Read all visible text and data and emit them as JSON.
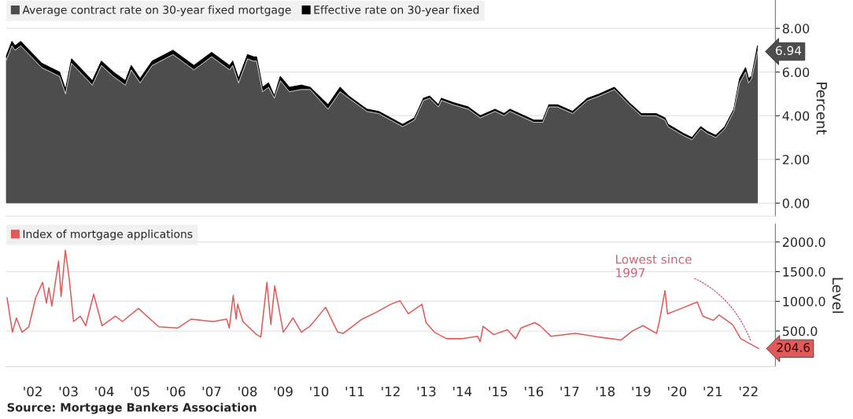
{
  "chart_data": [
    {
      "type": "area",
      "x": [
        "2001-10",
        "2001-12",
        "2002-01",
        "2002-03",
        "2002-10",
        "2003-04",
        "2003-06",
        "2003-08",
        "2004-03",
        "2004-06",
        "2004-10",
        "2005-02",
        "2005-04",
        "2005-07",
        "2005-11",
        "2006-06",
        "2007-01",
        "2007-07",
        "2008-01",
        "2008-02",
        "2008-04",
        "2008-07",
        "2008-09",
        "2008-10",
        "2008-12",
        "2009-02",
        "2009-04",
        "2009-06",
        "2009-09",
        "2010-01",
        "2010-04",
        "2010-10",
        "2011-02",
        "2011-05",
        "2011-11",
        "2012-03",
        "2012-11",
        "2013-03",
        "2013-06",
        "2013-08",
        "2013-11",
        "2013-12",
        "2014-04",
        "2014-09",
        "2015-01",
        "2015-06",
        "2015-09",
        "2015-11",
        "2016-07",
        "2016-10",
        "2016-12",
        "2017-03",
        "2017-08",
        "2018-01",
        "2018-05",
        "2018-10",
        "2019-03",
        "2019-07",
        "2019-12",
        "2020-03",
        "2020-04",
        "2020-09",
        "2020-12",
        "2021-03",
        "2021-05",
        "2021-08",
        "2021-11",
        "2022-02",
        "2022-04",
        "2022-06",
        "2022-07",
        "2022-08",
        "2022-10"
      ],
      "series": [
        {
          "name": "Average contract rate on 30-year fixed mortgage",
          "color": "#4d4d4d",
          "values": [
            6.5,
            7.2,
            7.0,
            7.2,
            6.2,
            5.8,
            5.0,
            6.4,
            5.4,
            6.3,
            5.8,
            5.4,
            6.1,
            5.5,
            6.3,
            6.8,
            6.1,
            6.7,
            6.1,
            6.3,
            5.5,
            6.6,
            6.5,
            6.5,
            5.1,
            5.3,
            4.8,
            5.6,
            5.1,
            5.2,
            5.2,
            4.3,
            5.1,
            4.8,
            4.2,
            4.1,
            3.5,
            3.8,
            4.7,
            4.8,
            4.4,
            4.7,
            4.5,
            4.3,
            3.9,
            4.2,
            4.0,
            4.2,
            3.7,
            3.7,
            4.4,
            4.4,
            4.1,
            4.7,
            4.9,
            5.2,
            4.5,
            4.0,
            4.0,
            3.8,
            3.5,
            3.1,
            2.9,
            3.4,
            3.2,
            3.0,
            3.4,
            4.2,
            5.5,
            6.0,
            5.5,
            5.7,
            6.94
          ],
          "value_labels": [
            null,
            null,
            null,
            null,
            null,
            null,
            null,
            null,
            null,
            null,
            null,
            null,
            null,
            null,
            null,
            null,
            null,
            null,
            null,
            null,
            null,
            null,
            null,
            null,
            null,
            null,
            null,
            null,
            null,
            null,
            null,
            null,
            null,
            null,
            null,
            null,
            null,
            null,
            null,
            null,
            null,
            null,
            null,
            null,
            null,
            null,
            null,
            null,
            null,
            null,
            null,
            null,
            null,
            null,
            null,
            null,
            null,
            null,
            null,
            null,
            null,
            null,
            null,
            null,
            null,
            null,
            null,
            null,
            null,
            null,
            null,
            null,
            "6.94"
          ]
        },
        {
          "name": "Effective rate on 30-year fixed",
          "color": "#000000",
          "values": [
            6.7,
            7.4,
            7.2,
            7.4,
            6.4,
            6.0,
            5.2,
            6.6,
            5.6,
            6.5,
            6.0,
            5.6,
            6.3,
            5.7,
            6.5,
            7.0,
            6.3,
            6.9,
            6.3,
            6.5,
            5.7,
            6.8,
            6.7,
            6.7,
            5.3,
            5.5,
            4.9,
            5.8,
            5.3,
            5.4,
            5.3,
            4.5,
            5.3,
            4.9,
            4.3,
            4.2,
            3.6,
            3.9,
            4.8,
            4.9,
            4.5,
            4.8,
            4.6,
            4.4,
            4.0,
            4.3,
            4.1,
            4.3,
            3.8,
            3.8,
            4.5,
            4.5,
            4.2,
            4.8,
            5.0,
            5.3,
            4.6,
            4.1,
            4.1,
            3.9,
            3.6,
            3.2,
            3.0,
            3.5,
            3.3,
            3.1,
            3.5,
            4.3,
            5.7,
            6.2,
            5.7,
            5.8,
            7.2
          ]
        }
      ],
      "ylabel": "Percent",
      "xlim": [
        "2001-10-01",
        "2023-04-01"
      ],
      "ylim": [
        -0.6,
        9.3
      ],
      "yticks": [
        {
          "value": 0,
          "label": "0.00"
        },
        {
          "value": 2,
          "label": "2.00"
        },
        {
          "value": 4,
          "label": "4.00"
        },
        {
          "value": 6,
          "label": "6.00"
        },
        {
          "value": 8,
          "label": "8.00"
        }
      ],
      "grid": "y",
      "legend": "top left",
      "tick_labels": "y"
    },
    {
      "type": "line",
      "x": [
        "2001-10-12",
        "2001-12-06",
        "2002-01-15",
        "2002-03-14",
        "2002-05-22",
        "2002-07-31",
        "2002-10-09",
        "2002-11-18",
        "2002-12-13",
        "2003-01-12",
        "2003-03-22",
        "2003-04-16",
        "2003-05-30",
        "2003-07-09",
        "2003-08-22",
        "2003-10-30",
        "2003-12-24",
        "2004-03-14",
        "2004-06-07",
        "2004-10-22",
        "2005-01-01",
        "2005-06-14",
        "2006-01-08",
        "2006-07-19",
        "2006-12-05",
        "2007-07-16",
        "2007-12-02",
        "2007-12-28",
        "2008-02-06",
        "2008-03-07",
        "2008-03-22",
        "2008-05-15",
        "2008-10-01",
        "2008-11-14",
        "2009-01-15",
        "2009-02-24",
        "2009-04-05",
        "2009-07-01",
        "2009-10-08",
        "2010-01-01",
        "2010-04-05",
        "2010-09-06",
        "2011-01-08",
        "2011-03-04",
        "2011-09-13",
        "2012-01-30",
        "2012-07-01",
        "2012-10-05",
        "2012-12-28",
        "2013-05-16",
        "2013-06-28",
        "2013-09-20",
        "2014-01-23",
        "2014-06-21",
        "2014-12-05",
        "2015-01-01",
        "2015-01-30",
        "2015-05-19",
        "2015-10-05",
        "2015-12-28",
        "2016-02-21",
        "2016-07-08",
        "2016-09-02",
        "2016-12-24",
        "2017-08-29",
        "2018-05-30",
        "2018-12-09",
        "2019-04-02",
        "2019-07-19",
        "2019-12-06",
        "2020-01-05",
        "2020-03-01",
        "2020-03-26",
        "2020-07-14",
        "2020-12-28",
        "2021-01-23",
        "2021-03-22",
        "2021-07-08",
        "2021-09-02",
        "2022-01-19",
        "2022-04-13",
        "2022-10-12"
      ],
      "series": [
        {
          "name": "Index of mortgage applications",
          "color": "#e05a5a",
          "values": [
            1060,
            480,
            720,
            480,
            570,
            1060,
            1320,
            970,
            1230,
            920,
            1680,
            1080,
            1860,
            1370,
            660,
            750,
            590,
            1120,
            590,
            750,
            660,
            880,
            570,
            550,
            700,
            660,
            700,
            550,
            1100,
            700,
            950,
            660,
            440,
            400,
            1320,
            610,
            1260,
            480,
            720,
            480,
            590,
            900,
            480,
            460,
            700,
            810,
            950,
            1010,
            790,
            950,
            640,
            480,
            370,
            370,
            410,
            320,
            580,
            440,
            520,
            370,
            550,
            640,
            590,
            410,
            460,
            390,
            350,
            500,
            590,
            460,
            680,
            1180,
            790,
            860,
            970,
            990,
            750,
            680,
            770,
            610,
            370,
            204.6
          ],
          "value_labels": [
            null,
            null,
            null,
            null,
            null,
            null,
            null,
            null,
            null,
            null,
            null,
            null,
            null,
            null,
            null,
            null,
            null,
            null,
            null,
            null,
            null,
            null,
            null,
            null,
            null,
            null,
            null,
            null,
            null,
            null,
            null,
            null,
            null,
            null,
            null,
            null,
            null,
            null,
            null,
            null,
            null,
            null,
            null,
            null,
            null,
            null,
            null,
            null,
            null,
            null,
            null,
            null,
            null,
            null,
            null,
            null,
            null,
            null,
            null,
            null,
            null,
            null,
            null,
            null,
            null,
            null,
            null,
            null,
            null,
            null,
            null,
            null,
            null,
            null,
            null,
            null,
            null,
            null,
            null,
            null,
            null,
            "204.6"
          ]
        }
      ],
      "ylabel": "Level",
      "xlim": [
        "2001-10-01",
        "2023-04-01"
      ],
      "ylim": [
        -100,
        2300
      ],
      "yticks": [
        {
          "value": 500,
          "label": "500.0"
        },
        {
          "value": 1000,
          "label": "1000.0"
        },
        {
          "value": 1500,
          "label": "1500.0"
        },
        {
          "value": 2000,
          "label": "2000.0"
        }
      ],
      "xticks": [
        {
          "value": "2002-07-01",
          "label": "'02"
        },
        {
          "value": "2003-07-01",
          "label": "'03"
        },
        {
          "value": "2004-07-01",
          "label": "'04"
        },
        {
          "value": "2005-07-01",
          "label": "'05"
        },
        {
          "value": "2006-07-01",
          "label": "'06"
        },
        {
          "value": "2007-07-01",
          "label": "'07"
        },
        {
          "value": "2008-07-01",
          "label": "'08"
        },
        {
          "value": "2009-07-01",
          "label": "'09"
        },
        {
          "value": "2010-07-01",
          "label": "'10"
        },
        {
          "value": "2011-07-01",
          "label": "'11"
        },
        {
          "value": "2012-07-01",
          "label": "'12"
        },
        {
          "value": "2013-07-01",
          "label": "'13"
        },
        {
          "value": "2014-07-01",
          "label": "'14"
        },
        {
          "value": "2015-07-01",
          "label": "'15"
        },
        {
          "value": "2016-07-01",
          "label": "'16"
        },
        {
          "value": "2017-07-01",
          "label": "'17"
        },
        {
          "value": "2018-07-01",
          "label": "'18"
        },
        {
          "value": "2019-07-01",
          "label": "'19"
        },
        {
          "value": "2020-07-01",
          "label": "'20"
        },
        {
          "value": "2021-07-01",
          "label": "'21"
        },
        {
          "value": "2022-07-01",
          "label": "'22"
        }
      ],
      "annotations": [
        {
          "text": "Lowest since\n1997",
          "x": "2022-08-01",
          "y": 300
        },
        "Source: Mortgage Bankers Association"
      ],
      "grid": "y",
      "legend": "top left"
    }
  ]
}
